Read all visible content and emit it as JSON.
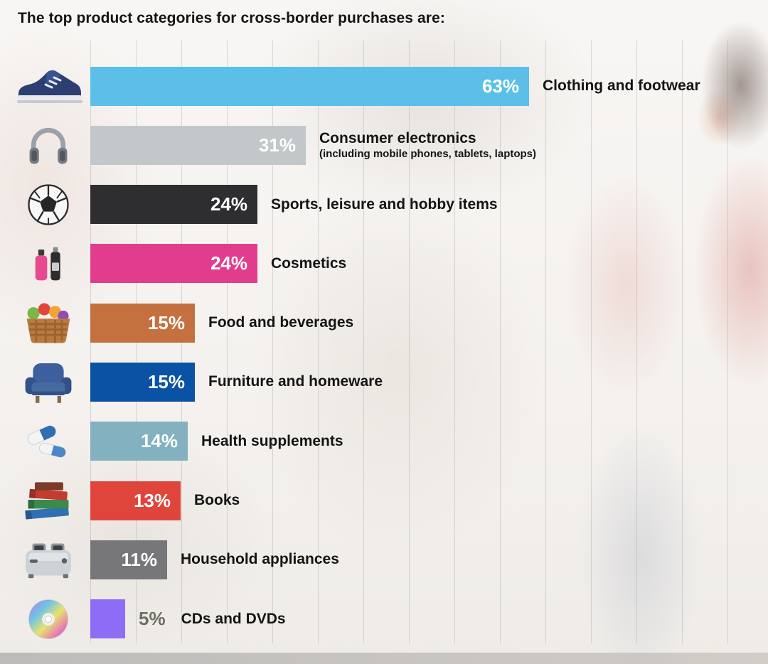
{
  "title": "The top product categories for cross-border purchases are:",
  "chart_data": {
    "type": "bar",
    "orientation": "horizontal",
    "unit": "percent",
    "grid": "vertical-lines",
    "axis_tick_labels_visible": false,
    "legend": "none",
    "title": "The top product categories for cross-border purchases are:",
    "items": [
      {
        "label": "Clothing and footwear",
        "value": 63,
        "value_label": "63%",
        "color": "#5bbfe8",
        "value_label_color": "#ffffff",
        "value_label_position": "inside",
        "icon": "sneaker-icon"
      },
      {
        "label": "Consumer electronics",
        "sublabel": "(including mobile phones, tablets, laptops)",
        "value": 31,
        "value_label": "31%",
        "color": "#c2c7ca",
        "value_label_color": "#ffffff",
        "value_label_position": "inside",
        "icon": "headphones-icon"
      },
      {
        "label": "Sports, leisure and hobby items",
        "value": 24,
        "value_label": "24%",
        "color": "#2e2e30",
        "value_label_color": "#ffffff",
        "value_label_position": "inside",
        "icon": "soccer-ball-icon"
      },
      {
        "label": "Cosmetics",
        "value": 24,
        "value_label": "24%",
        "color": "#e23d8c",
        "value_label_color": "#ffffff",
        "value_label_position": "inside",
        "icon": "cosmetics-icon"
      },
      {
        "label": "Food and beverages",
        "value": 15,
        "value_label": "15%",
        "color": "#c4703f",
        "value_label_color": "#ffffff",
        "value_label_position": "inside",
        "icon": "groceries-icon"
      },
      {
        "label": "Furniture and homeware",
        "value": 15,
        "value_label": "15%",
        "color": "#0a52a4",
        "value_label_color": "#ffffff",
        "value_label_position": "inside",
        "icon": "armchair-icon"
      },
      {
        "label": "Health supplements",
        "value": 14,
        "value_label": "14%",
        "color": "#84b1bf",
        "value_label_color": "#ffffff",
        "value_label_position": "inside",
        "icon": "pills-icon"
      },
      {
        "label": "Books",
        "value": 13,
        "value_label": "13%",
        "color": "#e0453c",
        "value_label_color": "#ffffff",
        "value_label_position": "inside",
        "icon": "books-icon"
      },
      {
        "label": "Household appliances",
        "value": 11,
        "value_label": "11%",
        "color": "#77777a",
        "value_label_color": "#ffffff",
        "value_label_position": "inside",
        "icon": "toaster-icon"
      },
      {
        "label": "CDs and DVDs",
        "value": 5,
        "value_label": "5%",
        "color": "#8f6cf5",
        "value_label_color": "#6e6e66",
        "value_label_position": "outside",
        "icon": "cd-icon"
      }
    ]
  }
}
